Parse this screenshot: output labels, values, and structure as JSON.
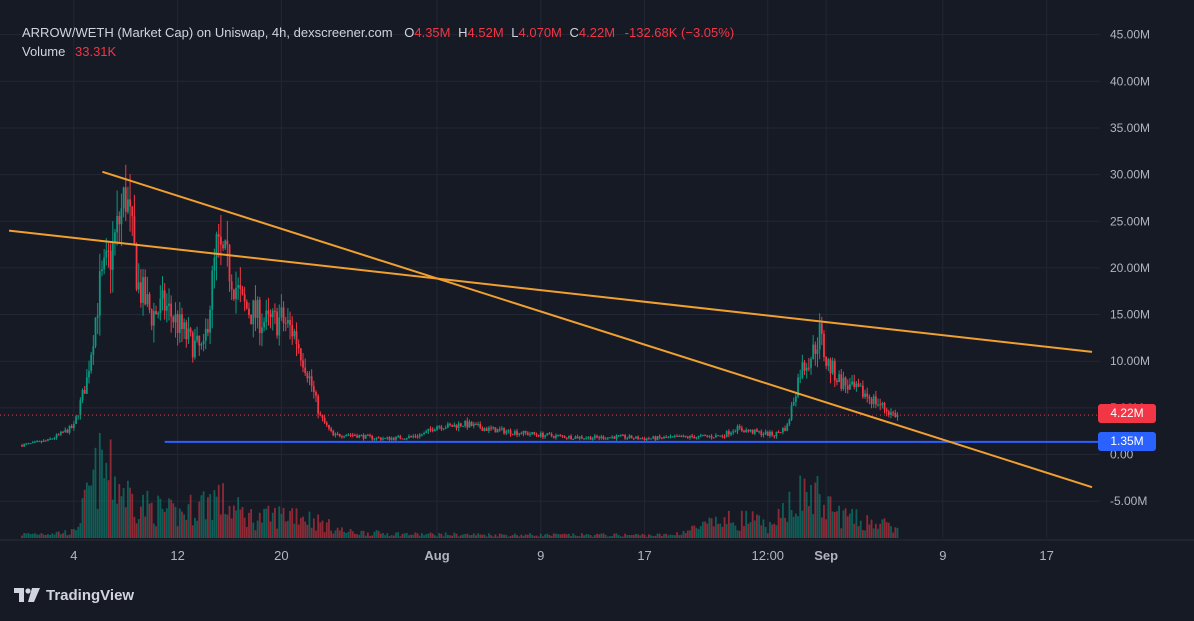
{
  "header": {
    "title": "ARROW/WETH (Market Cap) on Uniswap, 4h, dexscreener.com",
    "o_label": "O",
    "o_value": "4.35M",
    "h_label": "H",
    "h_value": "4.52M",
    "l_label": "L",
    "l_value": "4.070M",
    "c_label": "C",
    "c_value": "4.22M",
    "change": "-132.68K (−3.05%)",
    "volume_label": "Volume",
    "volume_value": "33.31K"
  },
  "price_tags": {
    "current": "4.22M",
    "support": "1.35M"
  },
  "branding": {
    "logo_text": "TradingView"
  },
  "colors": {
    "background": "#161a25",
    "up": "#089981",
    "down": "#f23645",
    "trendline": "#f0a030",
    "support_line": "#2962ff",
    "current_price": "#f23645"
  },
  "chart_data": {
    "type": "candlestick",
    "timeframe": "4h",
    "y_axis": {
      "ticks": [
        "45.00M",
        "40.00M",
        "35.00M",
        "30.00M",
        "25.00M",
        "20.00M",
        "15.00M",
        "10.00M",
        "5.00M",
        "0.00",
        "-5.00M"
      ],
      "tick_values": [
        45,
        40,
        35,
        30,
        25,
        20,
        15,
        10,
        5,
        0,
        -5
      ],
      "unit": "M"
    },
    "x_axis": {
      "ticks": [
        "4",
        "12",
        "20",
        "Aug",
        "9",
        "17",
        "12:00",
        "Sep",
        "9",
        "17"
      ],
      "tick_days": [
        4,
        12,
        20,
        32,
        40,
        48,
        57.5,
        62,
        71,
        79
      ]
    },
    "price_path": [
      [
        0,
        1.0
      ],
      [
        2,
        1.5
      ],
      [
        3,
        2.2
      ],
      [
        4,
        3.0
      ],
      [
        5,
        8
      ],
      [
        6,
        18
      ],
      [
        7,
        22
      ],
      [
        8,
        28
      ],
      [
        9,
        18
      ],
      [
        10,
        15
      ],
      [
        11,
        16
      ],
      [
        12,
        14
      ],
      [
        13,
        12
      ],
      [
        14,
        11
      ],
      [
        15,
        22
      ],
      [
        16,
        20
      ],
      [
        17,
        16
      ],
      [
        18,
        15
      ],
      [
        19,
        14
      ],
      [
        20,
        14.5
      ],
      [
        21,
        13
      ],
      [
        22,
        9
      ],
      [
        23,
        4
      ],
      [
        24,
        2.0
      ],
      [
        25,
        2.2
      ],
      [
        26,
        2.0
      ],
      [
        27,
        1.8
      ],
      [
        28,
        1.7
      ],
      [
        29,
        1.8
      ],
      [
        30,
        1.9
      ],
      [
        31,
        2.2
      ],
      [
        32,
        3.1
      ],
      [
        33,
        3.0
      ],
      [
        34,
        3.3
      ],
      [
        35,
        3.0
      ],
      [
        36,
        2.7
      ],
      [
        38,
        2.4
      ],
      [
        40,
        2.1
      ],
      [
        42,
        1.9
      ],
      [
        44,
        1.8
      ],
      [
        46,
        1.9
      ],
      [
        48,
        1.7
      ],
      [
        50,
        1.8
      ],
      [
        52,
        1.9
      ],
      [
        54,
        2.0
      ],
      [
        55,
        2.8
      ],
      [
        56,
        2.5
      ],
      [
        57,
        2.3
      ],
      [
        58,
        2.1
      ],
      [
        59,
        3.0
      ],
      [
        60,
        9
      ],
      [
        61,
        11
      ],
      [
        61.5,
        13
      ],
      [
        62,
        10
      ],
      [
        63,
        8
      ],
      [
        64,
        7
      ],
      [
        65,
        6.5
      ],
      [
        66,
        5.5
      ],
      [
        67,
        4.4
      ],
      [
        67.5,
        4.22
      ]
    ],
    "volume_path": [
      [
        0,
        0.05
      ],
      [
        4,
        0.08
      ],
      [
        5,
        0.5
      ],
      [
        6,
        0.95
      ],
      [
        7,
        0.8
      ],
      [
        8,
        0.6
      ],
      [
        9,
        0.45
      ],
      [
        10,
        0.4
      ],
      [
        12,
        0.3
      ],
      [
        15,
        0.55
      ],
      [
        16,
        0.4
      ],
      [
        18,
        0.25
      ],
      [
        20,
        0.3
      ],
      [
        21,
        0.35
      ],
      [
        23,
        0.2
      ],
      [
        25,
        0.08
      ],
      [
        30,
        0.05
      ],
      [
        40,
        0.04
      ],
      [
        50,
        0.04
      ],
      [
        54,
        0.22
      ],
      [
        56,
        0.25
      ],
      [
        58,
        0.12
      ],
      [
        59,
        0.5
      ],
      [
        61,
        0.6
      ],
      [
        62,
        0.4
      ],
      [
        64,
        0.25
      ],
      [
        66,
        0.2
      ],
      [
        67.5,
        0.1
      ]
    ],
    "current_price": 4.22,
    "support_level": 1.35,
    "trendlines": [
      {
        "from": [
          -1.0,
          24.0
        ],
        "to": [
          82.5,
          11.0
        ]
      },
      {
        "from": [
          6.2,
          30.3
        ],
        "to": [
          82.5,
          -3.5
        ]
      }
    ]
  }
}
